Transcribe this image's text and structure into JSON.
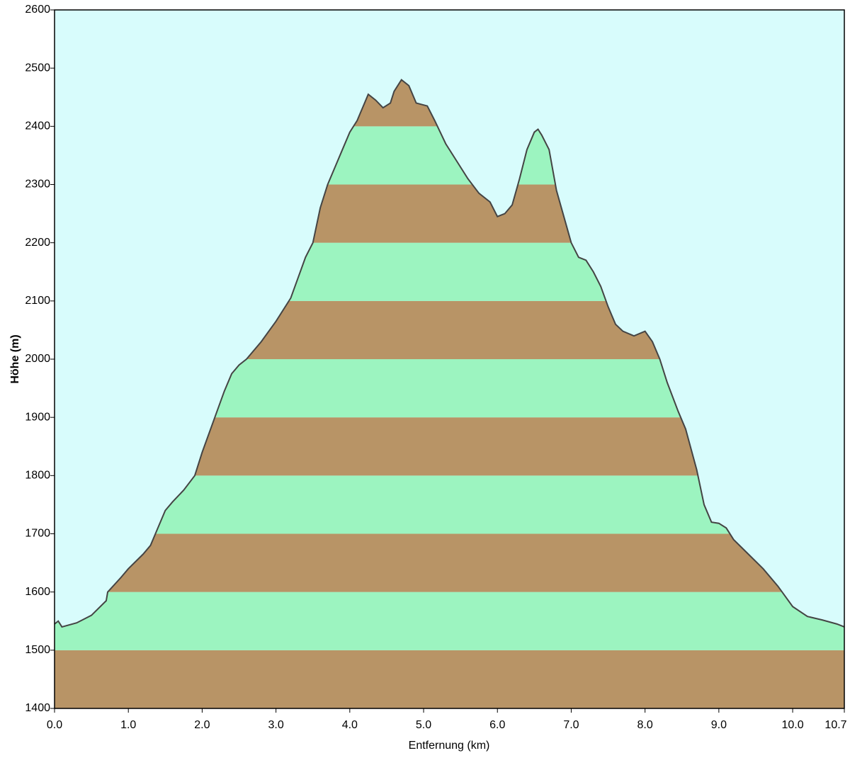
{
  "chart_data": {
    "type": "area",
    "x_label": "Entfernung  (km)",
    "y_label": "Höhe (m)",
    "x": [
      0.0,
      0.05,
      0.1,
      0.3,
      0.5,
      0.7,
      0.72,
      0.9,
      1.0,
      1.2,
      1.3,
      1.4,
      1.5,
      1.6,
      1.75,
      1.9,
      2.0,
      2.1,
      2.2,
      2.3,
      2.4,
      2.5,
      2.6,
      2.8,
      3.0,
      3.2,
      3.3,
      3.4,
      3.5,
      3.6,
      3.7,
      3.8,
      3.9,
      4.0,
      4.1,
      4.2,
      4.25,
      4.35,
      4.45,
      4.55,
      4.6,
      4.7,
      4.8,
      4.9,
      5.05,
      5.15,
      5.3,
      5.45,
      5.6,
      5.75,
      5.9,
      6.0,
      6.1,
      6.2,
      6.3,
      6.4,
      6.5,
      6.55,
      6.6,
      6.7,
      6.8,
      6.9,
      7.0,
      7.1,
      7.2,
      7.3,
      7.4,
      7.5,
      7.6,
      7.7,
      7.85,
      8.0,
      8.1,
      8.2,
      8.3,
      8.45,
      8.55,
      8.7,
      8.8,
      8.9,
      9.0,
      9.1,
      9.2,
      9.4,
      9.6,
      9.8,
      10.0,
      10.2,
      10.4,
      10.6,
      10.7
    ],
    "values": [
      1545,
      1550,
      1540,
      1547,
      1560,
      1585,
      1600,
      1625,
      1640,
      1665,
      1680,
      1710,
      1740,
      1755,
      1775,
      1800,
      1840,
      1875,
      1910,
      1945,
      1975,
      1990,
      2000,
      2030,
      2065,
      2105,
      2140,
      2175,
      2200,
      2260,
      2300,
      2330,
      2360,
      2390,
      2410,
      2440,
      2455,
      2445,
      2432,
      2440,
      2460,
      2480,
      2470,
      2440,
      2435,
      2410,
      2370,
      2340,
      2310,
      2285,
      2270,
      2245,
      2250,
      2265,
      2310,
      2360,
      2390,
      2395,
      2385,
      2360,
      2290,
      2245,
      2200,
      2175,
      2170,
      2150,
      2125,
      2090,
      2060,
      2048,
      2040,
      2048,
      2030,
      2000,
      1960,
      1910,
      1880,
      1810,
      1750,
      1720,
      1718,
      1710,
      1690,
      1665,
      1640,
      1610,
      1575,
      1558,
      1552,
      1545,
      1540
    ],
    "line_color": "#444444",
    "band_colors": [
      "#b89466",
      "#9cf4c0"
    ],
    "background": "#d8fcfc",
    "xlim": [
      0,
      10.7
    ],
    "ylim": [
      1400,
      2600
    ],
    "xticks": [
      {
        "value": 0,
        "label": "0.0"
      },
      {
        "value": 1,
        "label": "1.0"
      },
      {
        "value": 2,
        "label": "2.0"
      },
      {
        "value": 3,
        "label": "3.0"
      },
      {
        "value": 4,
        "label": "4.0"
      },
      {
        "value": 5,
        "label": "5.0"
      },
      {
        "value": 6,
        "label": "6.0"
      },
      {
        "value": 7,
        "label": "7.0"
      },
      {
        "value": 8,
        "label": "8.0"
      },
      {
        "value": 9,
        "label": "9.0"
      },
      {
        "value": 10,
        "label": "10.0"
      },
      {
        "value": 10.7,
        "label": "10.7"
      }
    ],
    "yticks": [
      1400,
      1500,
      1600,
      1700,
      1800,
      1900,
      2000,
      2100,
      2200,
      2300,
      2400,
      2500,
      2600
    ]
  }
}
